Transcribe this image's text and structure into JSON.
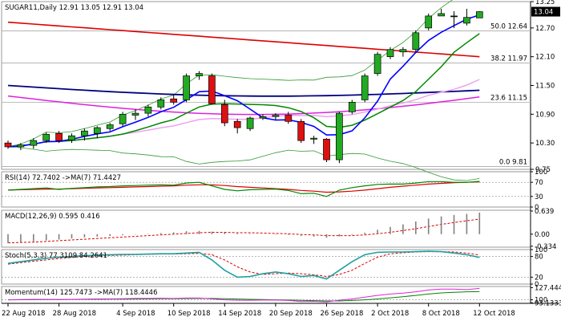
{
  "chart_data": {
    "type": "candlestick",
    "symbol": "SUGAR11,Daily",
    "ohlc_header": "12.91 13.05 12.91 13.04",
    "last_price": "13.04",
    "colors": {
      "bull": "#22aa22",
      "bear": "#dd1111",
      "doji": "#111111",
      "ma_red": "#dd0000",
      "ma_navy": "#000080",
      "ma_magenta": "#dd22dd",
      "ma_pink": "#f0a0f0",
      "ma_blue": "#0000ff",
      "ma_green": "#008800",
      "bb": "#339933",
      "price_box": "#000000"
    },
    "y_range": [
      9.75,
      13.25
    ],
    "y_ticks": [
      "13.25",
      "12.70",
      "12.10",
      "11.50",
      "10.90",
      "10.30",
      "9.75"
    ],
    "x_labels": [
      "22 Aug 2018",
      "28 Aug 2018",
      "4 Sep 2018",
      "10 Sep 2018",
      "14 Sep 2018",
      "20 Sep 2018",
      "26 Sep 2018",
      "2 Oct 2018",
      "8 Oct 2018",
      "12 Oct 2018"
    ],
    "x_label_bars": [
      0,
      4,
      9,
      13,
      17,
      21,
      25,
      29,
      33,
      37
    ],
    "fib_levels": [
      {
        "label": "50.0 12.64",
        "value": 12.64
      },
      {
        "label": "38.2 11.97",
        "value": 11.97
      },
      {
        "label": "23.6 11.15",
        "value": 11.15
      },
      {
        "label": "0.0 9.81",
        "value": 9.81
      }
    ],
    "candles": [
      [
        10.3,
        10.35,
        10.18,
        10.22
      ],
      [
        10.22,
        10.3,
        10.15,
        10.26
      ],
      [
        10.25,
        10.4,
        10.18,
        10.35
      ],
      [
        10.35,
        10.52,
        10.3,
        10.48
      ],
      [
        10.5,
        10.55,
        10.3,
        10.35
      ],
      [
        10.36,
        10.5,
        10.3,
        10.45
      ],
      [
        10.45,
        10.6,
        10.35,
        10.55
      ],
      [
        10.5,
        10.65,
        10.4,
        10.62
      ],
      [
        10.6,
        10.72,
        10.55,
        10.68
      ],
      [
        10.7,
        10.95,
        10.65,
        10.9
      ],
      [
        10.88,
        11.0,
        10.78,
        10.92
      ],
      [
        10.92,
        11.1,
        10.85,
        11.05
      ],
      [
        11.05,
        11.25,
        11.0,
        11.2
      ],
      [
        11.22,
        11.3,
        11.1,
        11.15
      ],
      [
        11.2,
        11.75,
        11.15,
        11.7
      ],
      [
        11.7,
        11.8,
        11.62,
        11.75
      ],
      [
        11.7,
        11.75,
        11.1,
        11.12
      ],
      [
        11.1,
        11.2,
        10.65,
        10.72
      ],
      [
        10.75,
        10.8,
        10.5,
        10.62
      ],
      [
        10.6,
        10.85,
        10.55,
        10.82
      ],
      [
        10.82,
        10.9,
        10.78,
        10.85
      ],
      [
        10.85,
        10.92,
        10.78,
        10.88
      ],
      [
        10.88,
        10.95,
        10.7,
        10.75
      ],
      [
        10.75,
        10.8,
        10.3,
        10.35
      ],
      [
        10.38,
        10.45,
        10.28,
        10.4
      ],
      [
        10.38,
        10.4,
        9.9,
        9.95
      ],
      [
        9.95,
        10.95,
        9.88,
        10.92
      ],
      [
        10.95,
        11.2,
        10.9,
        11.15
      ],
      [
        11.2,
        11.75,
        11.15,
        11.7
      ],
      [
        11.75,
        12.2,
        11.7,
        12.15
      ],
      [
        12.1,
        12.3,
        12.05,
        12.25
      ],
      [
        12.2,
        12.3,
        12.1,
        12.25
      ],
      [
        12.25,
        12.65,
        12.2,
        12.6
      ],
      [
        12.7,
        13.0,
        12.65,
        12.95
      ],
      [
        12.95,
        13.1,
        12.95,
        13.0
      ],
      [
        12.95,
        13.05,
        12.7,
        12.95
      ],
      [
        12.8,
        13.1,
        12.75,
        12.92
      ],
      [
        12.91,
        13.05,
        12.91,
        13.04
      ]
    ],
    "rsi": {
      "label": "RSI(14) 72.7402 ->MA(7) 71.4427",
      "ticks": [
        "100",
        "70",
        "30",
        "0"
      ],
      "range": [
        0,
        100
      ],
      "values": [
        48,
        50,
        52,
        54,
        50,
        53,
        55,
        57,
        58,
        60,
        61,
        62,
        63,
        62,
        68,
        70,
        60,
        50,
        46,
        49,
        50,
        51,
        47,
        38,
        39,
        30,
        48,
        55,
        60,
        64,
        65,
        65,
        68,
        72,
        72,
        70,
        70,
        72.7
      ],
      "ma": [
        48,
        49,
        50,
        51,
        51,
        52,
        53,
        54,
        55,
        56,
        57,
        58,
        59,
        60,
        62,
        63,
        63,
        61,
        58,
        56,
        54,
        52,
        50,
        47,
        45,
        42,
        43,
        45,
        48,
        52,
        56,
        59,
        62,
        65,
        67,
        69,
        70,
        71.4
      ]
    },
    "macd": {
      "label": "MACD(12,26,9) 0.595 0.416",
      "ticks": [
        "0.639",
        "0.00",
        "-0.334"
      ],
      "range": [
        -0.36,
        0.66
      ],
      "histogram": [
        -0.25,
        -0.22,
        -0.2,
        -0.17,
        -0.15,
        -0.12,
        -0.09,
        -0.07,
        -0.05,
        -0.03,
        -0.01,
        0.01,
        0.03,
        0.05,
        0.08,
        0.09,
        0.07,
        0.04,
        0.02,
        0.01,
        0.0,
        -0.01,
        -0.02,
        -0.05,
        -0.07,
        -0.1,
        -0.06,
        -0.02,
        0.04,
        0.12,
        0.2,
        0.27,
        0.35,
        0.43,
        0.49,
        0.53,
        0.56,
        0.595
      ],
      "signal": [
        -0.24,
        -0.23,
        -0.22,
        -0.2,
        -0.18,
        -0.16,
        -0.14,
        -0.12,
        -0.1,
        -0.08,
        -0.06,
        -0.04,
        -0.02,
        0.0,
        0.02,
        0.04,
        0.05,
        0.05,
        0.04,
        0.04,
        0.03,
        0.02,
        0.01,
        -0.01,
        -0.02,
        -0.04,
        -0.04,
        -0.04,
        -0.02,
        0.01,
        0.05,
        0.1,
        0.15,
        0.21,
        0.27,
        0.32,
        0.37,
        0.416
      ]
    },
    "stoch": {
      "label": "Stoch(5,3,3) 77.3109 84.2641",
      "ticks": [
        "100",
        "80",
        "20",
        "0"
      ],
      "range": [
        0,
        100
      ],
      "k": [
        60,
        65,
        70,
        75,
        78,
        80,
        82,
        84,
        85,
        86,
        86,
        87,
        88,
        88,
        90,
        92,
        70,
        40,
        20,
        22,
        30,
        35,
        30,
        22,
        25,
        15,
        40,
        65,
        85,
        92,
        93,
        93,
        94,
        95,
        94,
        90,
        85,
        77.3
      ],
      "d": [
        58,
        62,
        66,
        70,
        74,
        77,
        80,
        82,
        83,
        84,
        85,
        86,
        87,
        87,
        88,
        89,
        85,
        70,
        50,
        35,
        28,
        30,
        32,
        30,
        27,
        22,
        28,
        40,
        60,
        78,
        88,
        91,
        93,
        94,
        94,
        93,
        90,
        84.3
      ]
    },
    "momentum": {
      "label": "Momentum(14) 125.7473 ->MA(7) 118.4446",
      "ticks": [
        "127.4443",
        "100",
        "93.1333"
      ],
      "range": [
        92,
        130
      ],
      "values": [
        100,
        100.5,
        101,
        101,
        100.5,
        101,
        101.5,
        102,
        102,
        102.5,
        103,
        103,
        103.5,
        103,
        104,
        104,
        102,
        100,
        99,
        99,
        99.5,
        99.5,
        98.5,
        96,
        96.5,
        95,
        99,
        102,
        106,
        110,
        113,
        115,
        118,
        122,
        124,
        124,
        123,
        125.7
      ],
      "ma": [
        100,
        100.2,
        100.4,
        100.6,
        100.7,
        100.8,
        101,
        101.2,
        101.4,
        101.6,
        101.8,
        102,
        102.3,
        102.5,
        102.8,
        103,
        103,
        102.5,
        101.8,
        101,
        100.5,
        100,
        99.5,
        98.8,
        98.2,
        97.5,
        97.5,
        98.5,
        100,
        102,
        104.5,
        107,
        110,
        113,
        115.5,
        117,
        118,
        118.4
      ]
    }
  }
}
